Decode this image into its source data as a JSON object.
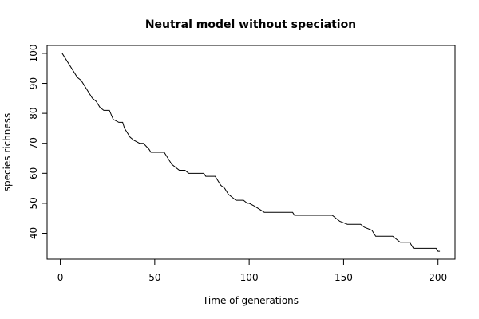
{
  "chart_data": {
    "type": "line",
    "title": "Neutral model without speciation",
    "x_label": "Time of generations",
    "y_label": "species richness",
    "x": [
      1,
      9,
      11,
      17,
      19,
      21,
      23,
      26,
      28,
      31,
      33,
      34,
      37,
      39,
      42,
      44,
      47,
      48,
      55,
      57,
      59,
      61,
      63,
      66,
      68,
      76,
      77,
      82,
      85,
      87,
      89,
      91,
      93,
      97,
      99,
      100,
      103,
      108,
      123,
      124,
      144,
      146,
      148,
      152,
      159,
      161,
      165,
      167,
      176,
      178,
      180,
      185,
      187,
      199,
      200,
      201
    ],
    "series": [
      {
        "name": "species richness",
        "color": "#000000",
        "values": [
          100,
          92,
          91,
          85,
          84,
          82,
          81,
          81,
          78,
          77,
          77,
          75,
          72,
          71,
          70,
          70,
          68,
          67,
          67,
          65,
          63,
          62,
          61,
          61,
          60,
          60,
          59,
          59,
          56,
          55,
          53,
          52,
          51,
          51,
          50,
          50,
          49,
          47,
          47,
          46,
          46,
          45,
          44,
          43,
          43,
          42,
          41,
          39,
          39,
          38,
          37,
          37,
          35,
          35,
          34,
          34
        ]
      }
    ],
    "xlim": [
      -7,
      209
    ],
    "xticks": [
      0,
      50,
      100,
      150,
      200
    ],
    "ylim": [
      31.36,
      102.64
    ],
    "yticks": [
      40,
      50,
      60,
      70,
      80,
      90,
      100
    ]
  }
}
